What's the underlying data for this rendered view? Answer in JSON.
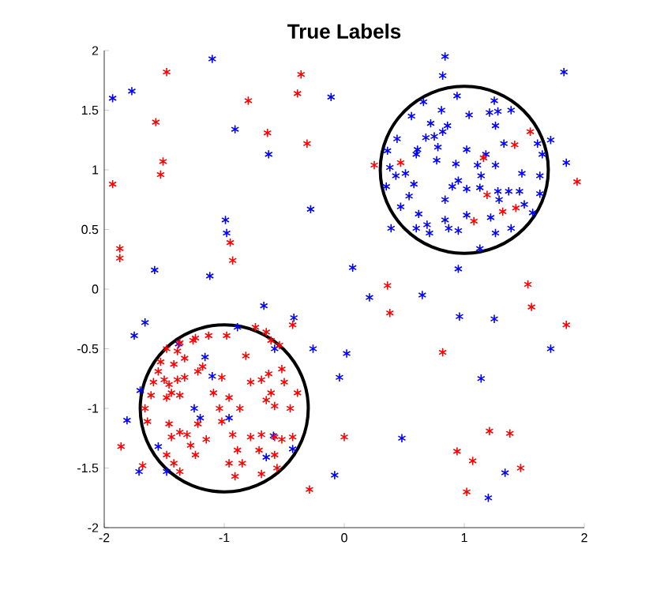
{
  "chart_data": {
    "type": "scatter",
    "title": "True Labels",
    "marker": "cross",
    "xlim": [
      -2,
      2
    ],
    "ylim": [
      -2,
      2
    ],
    "xticks": [
      -2,
      -1,
      0,
      1,
      2
    ],
    "yticks": [
      -2,
      -1.5,
      -1,
      -0.5,
      0,
      0.5,
      1,
      1.5,
      2
    ],
    "series": [
      {
        "color": "#0000ff",
        "x": [
          -1.1,
          -1.93,
          -1.77,
          -0.11,
          -0.91,
          -0.63,
          -0.28,
          -0.99,
          -0.98,
          -1.58,
          -1.12,
          0.84,
          0.82,
          1.83,
          1.85,
          0.07,
          0.95,
          0.66,
          0.94,
          1.25,
          1.39,
          1.28,
          0.56,
          0.81,
          1.04,
          1.21,
          0.72,
          0.86,
          0.82,
          0.75,
          0.44,
          0.68,
          0.78,
          0.61,
          0.6,
          1.02,
          1.33,
          1.26,
          1.61,
          1.72,
          1.65,
          0.36,
          0.38,
          0.51,
          0.77,
          0.93,
          1.11,
          1.18,
          1.26,
          1.48,
          1.63,
          1.14,
          0.95,
          0.9,
          0.58,
          0.35,
          0.43,
          1.02,
          1.13,
          1.28,
          1.37,
          1.46,
          1.63,
          0.54,
          0.47,
          0.62,
          0.84,
          0.87,
          0.95,
          0.69,
          0.6,
          0.39,
          0.71,
          1.02,
          1.22,
          1.57,
          1.26,
          1.39,
          1.13,
          1.5,
          1.29,
          0.84,
          0.21,
          0.65,
          0.96,
          1.25,
          1.72,
          0.02,
          -0.04,
          1.14,
          0.48,
          1.34,
          1.2,
          -0.08,
          -1.66,
          -1.75,
          -0.67,
          -0.42,
          -0.26,
          -1.81,
          -1.71,
          -1.55,
          -1.7,
          -1.38,
          -1.16,
          -1.1,
          -1.25,
          -1.2,
          -0.96,
          -0.58,
          -0.59,
          -0.65,
          -0.43,
          -0.89,
          -1.48
        ],
        "values": [
          1.93,
          1.6,
          1.66,
          1.61,
          1.34,
          1.13,
          0.67,
          0.58,
          0.47,
          0.16,
          0.11,
          1.95,
          1.79,
          1.82,
          1.06,
          0.18,
          0.17,
          1.57,
          1.62,
          1.58,
          1.5,
          1.49,
          1.45,
          1.5,
          1.46,
          1.48,
          1.39,
          1.37,
          1.32,
          1.28,
          1.26,
          1.27,
          1.19,
          1.17,
          1.13,
          1.17,
          1.22,
          1.37,
          1.22,
          1.25,
          1.13,
          1.16,
          1.02,
          0.97,
          1.08,
          1.05,
          1.04,
          1.13,
          1.04,
          0.97,
          0.95,
          0.95,
          0.91,
          0.86,
          0.88,
          0.86,
          0.95,
          0.84,
          0.85,
          0.82,
          0.82,
          0.82,
          0.8,
          0.78,
          0.69,
          0.63,
          0.58,
          0.51,
          0.49,
          0.54,
          0.51,
          0.51,
          0.47,
          0.62,
          0.6,
          0.64,
          0.47,
          0.51,
          0.34,
          0.71,
          0.75,
          0.75,
          -0.07,
          -0.05,
          -0.23,
          -0.25,
          -0.5,
          -0.54,
          -0.74,
          -0.75,
          -1.25,
          -1.54,
          -1.75,
          -1.56,
          -0.28,
          -0.39,
          -0.14,
          -0.24,
          -0.5,
          -1.1,
          -1.53,
          -1.32,
          -0.85,
          -0.46,
          -0.57,
          -0.73,
          -1.0,
          -1.08,
          -1.08,
          -0.5,
          -1.23,
          -1.41,
          -1.34,
          -0.32,
          -1.53
        ]
      },
      {
        "color": "#ff0000",
        "x": [
          -1.48,
          -0.36,
          -0.39,
          -0.8,
          -1.57,
          -0.64,
          -0.31,
          -1.51,
          -1.53,
          -1.93,
          -0.95,
          -0.93,
          -1.87,
          -1.87,
          1.94,
          0.25,
          0.36,
          1.53,
          1.55,
          1.42,
          0.47,
          1.16,
          1.19,
          1.32,
          1.43,
          1.08,
          0.38,
          1.56,
          1.85,
          0.82,
          0.0,
          1.21,
          1.38,
          0.94,
          1.07,
          1.47,
          1.02,
          -1.86,
          -1.68,
          -0.29,
          -0.43,
          -1.53,
          -1.48,
          -1.39,
          -1.37,
          -1.26,
          -1.13,
          -0.98,
          -1.24,
          -1.33,
          -1.42,
          -1.55,
          -1.59,
          -1.5,
          -1.46,
          -1.39,
          -1.33,
          -1.44,
          -1.48,
          -1.37,
          -1.61,
          -1.66,
          -1.64,
          -1.18,
          -1.22,
          -1.02,
          -1.09,
          -1.04,
          -0.96,
          -0.87,
          -1.02,
          -0.82,
          -0.78,
          -0.69,
          -0.63,
          -0.61,
          -0.65,
          -0.58,
          -0.52,
          -0.5,
          -0.39,
          -0.45,
          -0.65,
          -0.61,
          -0.54,
          -0.74,
          -1.44,
          -1.37,
          -1.31,
          -1.28,
          -1.46,
          -1.48,
          -1.42,
          -1.37,
          -1.22,
          -1.15,
          -1.24,
          -0.96,
          -0.89,
          -0.85,
          -0.91,
          -0.78,
          -0.69,
          -0.58,
          -0.52,
          -0.43,
          -0.71,
          -0.58,
          -0.56,
          -0.69,
          -0.93
        ],
        "values": [
          1.82,
          1.8,
          1.64,
          1.58,
          1.4,
          1.31,
          1.22,
          1.07,
          0.96,
          0.88,
          0.39,
          0.24,
          0.34,
          0.26,
          0.9,
          1.04,
          0.03,
          0.04,
          1.32,
          1.21,
          1.06,
          1.1,
          0.79,
          0.65,
          0.68,
          0.57,
          -0.2,
          -0.15,
          -0.3,
          -0.53,
          -1.24,
          -1.19,
          -1.21,
          -1.36,
          -1.44,
          -1.5,
          -1.7,
          -1.32,
          -1.48,
          -1.68,
          -0.3,
          -0.61,
          -0.5,
          -0.52,
          -0.45,
          -0.43,
          -0.39,
          -0.39,
          -0.41,
          -0.58,
          -0.63,
          -0.69,
          -0.78,
          -0.76,
          -0.8,
          -0.76,
          -0.74,
          -0.87,
          -0.91,
          -0.89,
          -0.89,
          -1.0,
          -1.11,
          -0.65,
          -0.69,
          -0.74,
          -0.87,
          -1.0,
          -0.91,
          -1.0,
          -1.11,
          -0.56,
          -0.78,
          -0.76,
          -0.71,
          -0.87,
          -0.93,
          -0.98,
          -0.67,
          -0.78,
          -0.87,
          -1.0,
          -0.36,
          -0.43,
          -0.47,
          -0.32,
          -1.24,
          -1.2,
          -1.22,
          -1.31,
          -1.13,
          -1.39,
          -1.46,
          -1.53,
          -1.13,
          -1.26,
          -1.39,
          -1.46,
          -1.35,
          -1.46,
          -1.57,
          -1.24,
          -1.22,
          -1.24,
          -1.26,
          -1.24,
          -1.35,
          -1.39,
          -1.5,
          -1.55,
          -1.22
        ]
      }
    ]
  }
}
